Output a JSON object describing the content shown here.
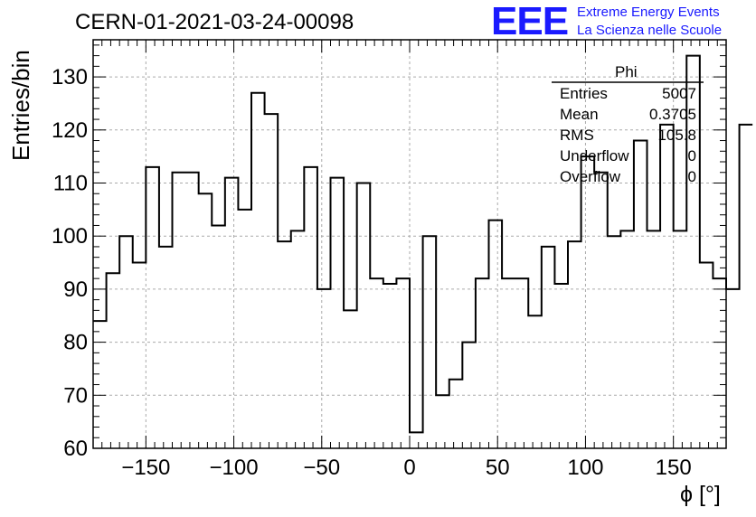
{
  "chart_data": {
    "type": "bar",
    "histogram": true,
    "title": "CERN-01-2021-03-24-00098",
    "xlabel": "ϕ [°]",
    "ylabel": "Entries/bin",
    "xlim": [
      -180,
      180
    ],
    "ylim": [
      60,
      137
    ],
    "xticks": [
      -150,
      -100,
      -50,
      0,
      50,
      100,
      150
    ],
    "xtick_labels": [
      "−150",
      "−100",
      "−50",
      "0",
      "50",
      "100",
      "150"
    ],
    "yticks": [
      60,
      70,
      80,
      90,
      100,
      110,
      120,
      130
    ],
    "ytick_labels": [
      "60",
      "70",
      "80",
      "90",
      "100",
      "110",
      "120",
      "130"
    ],
    "grid": true,
    "bin_width": 7.5,
    "bin_start": -180,
    "values": [
      84,
      93,
      100,
      95,
      113,
      98,
      112,
      112,
      108,
      102,
      111,
      105,
      127,
      123,
      99,
      101,
      113,
      90,
      111,
      86,
      110,
      92,
      91,
      92,
      63,
      100,
      70,
      73,
      80,
      92,
      103,
      92,
      92,
      85,
      98,
      91,
      99,
      115,
      112,
      100,
      101,
      118,
      101,
      121,
      101,
      134,
      95,
      92,
      90,
      121
    ],
    "line_color": "#000000",
    "stats_box": {
      "title": "Phi",
      "rows": [
        {
          "label": "Entries",
          "value": "5007"
        },
        {
          "label": "Mean",
          "value": "0.3705"
        },
        {
          "label": "RMS",
          "value": "105.8"
        },
        {
          "label": "Underflow",
          "value": "0"
        },
        {
          "label": "Overflow",
          "value": "0"
        }
      ]
    }
  },
  "logo": {
    "mark": "EEE",
    "line1": "Extreme Energy Events",
    "line2": "La Scienza nelle Scuole",
    "color": "#1a1aff"
  }
}
